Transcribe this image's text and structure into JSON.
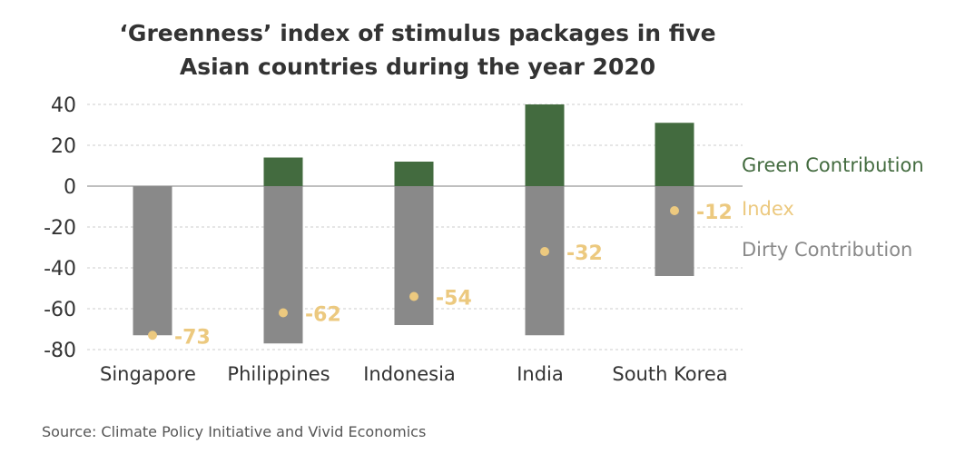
{
  "title_line1": "‘Greenness’ index of stimulus packages in five",
  "title_line2": "Asian countries during the year 2020",
  "source": "Source: Climate Policy Initiative and Vivid Economics",
  "colors": {
    "green": "#436b3f",
    "dirty": "#898989",
    "index": "#ecc97f",
    "grid": "#cccccc",
    "zero": "#aaaaaa",
    "text": "#333333"
  },
  "chart_data": {
    "type": "bar",
    "stacked": true,
    "title": "‘Greenness’ index of stimulus packages in five Asian countries during the year 2020",
    "categories": [
      "Singapore",
      "Philippines",
      "Indonesia",
      "India",
      "South Korea"
    ],
    "series": [
      {
        "name": "Green Contribution",
        "values": [
          0,
          14,
          12,
          40,
          31
        ],
        "color": "#436b3f"
      },
      {
        "name": "Dirty Contribution",
        "values": [
          -73,
          -77,
          -68,
          -73,
          -44
        ],
        "color": "#898989"
      }
    ],
    "index": {
      "name": "Index",
      "values": [
        -73,
        -62,
        -54,
        -32,
        -12
      ],
      "labels": [
        "-73",
        "-62",
        "-54",
        "-32",
        "-12"
      ],
      "color": "#ecc97f"
    },
    "ylim": [
      -80,
      40
    ],
    "yticks": [
      40,
      20,
      0,
      -20,
      -40,
      -60,
      -80
    ],
    "ytick_labels": [
      "40",
      "20",
      "0",
      "-20",
      "-40",
      "-60",
      "-80"
    ],
    "grid": true,
    "legend_position": "right"
  }
}
